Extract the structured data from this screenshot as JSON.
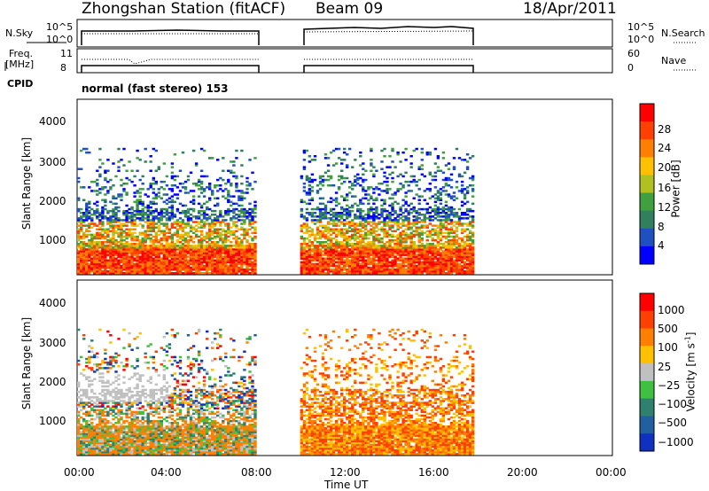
{
  "header": {
    "station": "Zhongshan Station (fitACF)",
    "beam": "Beam 09",
    "date": "18/Apr/2011"
  },
  "panels": {
    "nsky_label": "N.Sky",
    "nsearch_label": "N.Search",
    "nsky_ticks": [
      "10^5",
      "10^0"
    ],
    "nsearch_ticks": [
      "10^5",
      "10^0"
    ],
    "freq_label_1": "Freq.",
    "freq_label_2": "[MHz]",
    "freq_ticks": [
      "11",
      "8"
    ],
    "nave_label": "Nave",
    "nave_ticks": [
      "60",
      "0"
    ],
    "cpid_label": "CPID",
    "cpid_value": "normal (fast stereo) 153"
  },
  "colors": {
    "power_scale": [
      "#0000ff",
      "#2050c0",
      "#308060",
      "#40a040",
      "#b0c020",
      "#ffc000",
      "#ff8000",
      "#ff4000",
      "#ff0000"
    ],
    "velocity_scale": [
      "#1030c0",
      "#2060a0",
      "#308070",
      "#40c040",
      "#c0c0c0",
      "#ffc000",
      "#ff8000",
      "#ff4000",
      "#ff0000"
    ]
  },
  "chart_data": [
    {
      "type": "heatmap",
      "name": "power",
      "ylabel": "Slant Range [km]",
      "yticks": [
        "4000",
        "3000",
        "2000",
        "1000"
      ],
      "ylim": [
        180,
        4500
      ],
      "xlim": [
        0,
        24
      ],
      "colorbar_label": "Power [dB]",
      "colorbar_ticks": [
        "28",
        "24",
        "20",
        "16",
        "12",
        "8",
        "4"
      ],
      "colorbar_range": [
        0,
        32
      ],
      "data_intervals_ut": [
        [
          0,
          8
        ],
        [
          10,
          17.7
        ]
      ]
    },
    {
      "type": "heatmap",
      "name": "velocity",
      "ylabel": "Slant Range [km]",
      "yticks": [
        "4000",
        "3000",
        "2000",
        "1000"
      ],
      "ylim": [
        180,
        4500
      ],
      "xlim": [
        0,
        24
      ],
      "colorbar_label": "Velocity [m s",
      "colorbar_label_sup": "-1",
      "colorbar_label_end": "]",
      "colorbar_ticks": [
        "1000",
        "500",
        "100",
        "25",
        "−25",
        "−100",
        "−500",
        "−1000"
      ],
      "data_intervals_ut": [
        [
          0,
          8
        ],
        [
          10,
          17.7
        ]
      ]
    }
  ],
  "xaxis": {
    "ticks": [
      "00:00",
      "04:00",
      "08:00",
      "12:00",
      "16:00",
      "20:00",
      "00:00"
    ],
    "label": "Time UT"
  }
}
